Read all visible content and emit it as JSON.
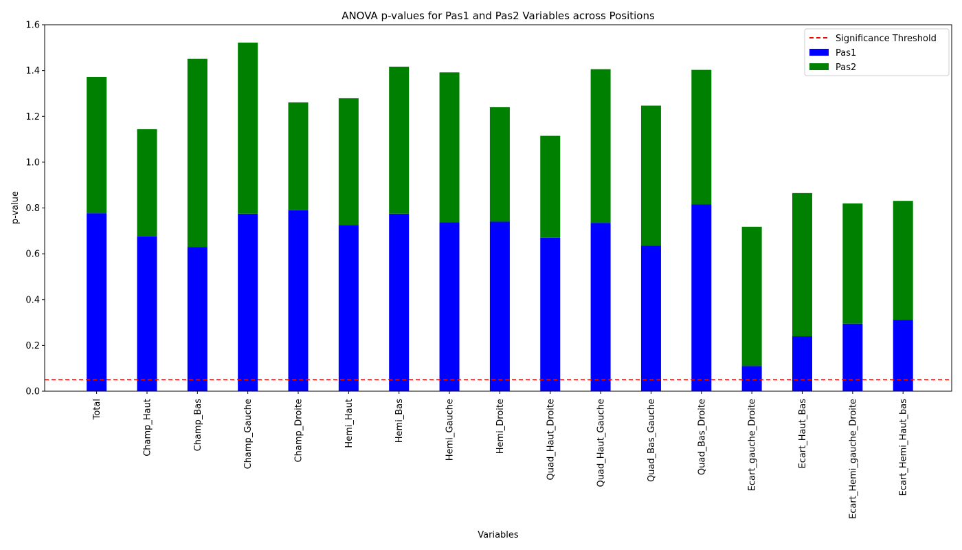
{
  "chart_data": {
    "type": "bar",
    "stacked": true,
    "title": "ANOVA p-values for Pas1 and Pas2 Variables across Positions",
    "xlabel": "Variables",
    "ylabel": "p-value",
    "ylim": [
      0,
      1.6
    ],
    "yticks": [
      "0.0",
      "0.2",
      "0.4",
      "0.6",
      "0.8",
      "1.0",
      "1.2",
      "1.4",
      "1.6"
    ],
    "grid": false,
    "legend_position": "top-right",
    "categories": [
      "Total",
      "Champ_Haut",
      "Champ_Bas",
      "Champ_Gauche",
      "Champ_Droite",
      "Hemi_Haut",
      "Hemi_Bas",
      "Hemi_Gauche",
      "Hemi_Droite",
      "Quad_Haut_Droite",
      "Quad_Haut_Gauche",
      "Quad_Bas_Gauche",
      "Quad_Bas_Droite",
      "Ecart_gauche_Droite",
      "Ecart_Haut_Bas",
      "Ecart_Hemi_gauche_Droite",
      "Ecart_Hemi_Haut_bas"
    ],
    "series": [
      {
        "name": "Pas1",
        "color": "#0000ff",
        "values": [
          0.777,
          0.676,
          0.63,
          0.775,
          0.79,
          0.726,
          0.775,
          0.738,
          0.74,
          0.67,
          0.735,
          0.636,
          0.815,
          0.11,
          0.24,
          0.295,
          0.312
        ]
      },
      {
        "name": "Pas2",
        "color": "#008000",
        "values": [
          0.595,
          0.468,
          0.821,
          0.747,
          0.471,
          0.553,
          0.642,
          0.654,
          0.5,
          0.445,
          0.671,
          0.611,
          0.588,
          0.608,
          0.625,
          0.525,
          0.519
        ]
      }
    ],
    "reference_line": {
      "name": "Significance Threshold",
      "value": 0.05,
      "color": "#ff0000",
      "style": "dashed"
    }
  }
}
